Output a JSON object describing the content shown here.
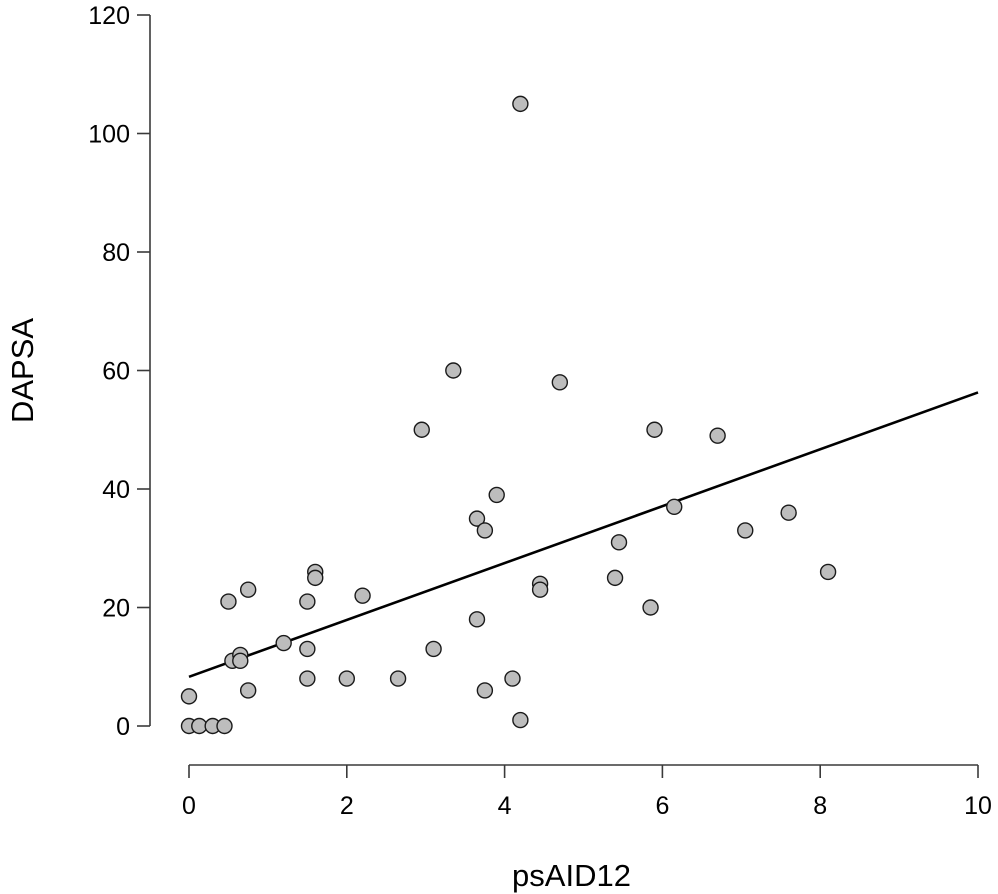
{
  "chart_data": {
    "type": "scatter",
    "title": "",
    "xlabel": "psAID12",
    "ylabel": "DAPSA",
    "xlim": [
      0,
      10
    ],
    "ylim": [
      0,
      120
    ],
    "xticks": [
      0,
      2,
      4,
      6,
      8,
      10
    ],
    "yticks": [
      0,
      20,
      40,
      60,
      80,
      100,
      120
    ],
    "x_tick_labels": [
      "0",
      "2",
      "4",
      "6",
      "8",
      "10"
    ],
    "y_tick_labels": [
      "0",
      "20",
      "40",
      "60",
      "80",
      "100",
      "120"
    ],
    "grid": false,
    "legend": "none",
    "point_color": "#bdbdbd",
    "point_edge_color": "#1a1a1a",
    "line_color": "#000000",
    "points": [
      {
        "x": 0.0,
        "y": 5
      },
      {
        "x": 0.0,
        "y": 0
      },
      {
        "x": 0.13,
        "y": 0
      },
      {
        "x": 0.3,
        "y": 0
      },
      {
        "x": 0.45,
        "y": 0
      },
      {
        "x": 0.5,
        "y": 21
      },
      {
        "x": 0.55,
        "y": 11
      },
      {
        "x": 0.65,
        "y": 12
      },
      {
        "x": 0.65,
        "y": 11
      },
      {
        "x": 0.75,
        "y": 23
      },
      {
        "x": 0.75,
        "y": 6
      },
      {
        "x": 1.2,
        "y": 14
      },
      {
        "x": 1.5,
        "y": 21
      },
      {
        "x": 1.5,
        "y": 13
      },
      {
        "x": 1.5,
        "y": 8
      },
      {
        "x": 1.6,
        "y": 26
      },
      {
        "x": 1.6,
        "y": 25
      },
      {
        "x": 2.0,
        "y": 8
      },
      {
        "x": 2.2,
        "y": 22
      },
      {
        "x": 2.65,
        "y": 8
      },
      {
        "x": 2.95,
        "y": 50
      },
      {
        "x": 3.1,
        "y": 13
      },
      {
        "x": 3.35,
        "y": 60
      },
      {
        "x": 3.65,
        "y": 35
      },
      {
        "x": 3.65,
        "y": 18
      },
      {
        "x": 3.75,
        "y": 33
      },
      {
        "x": 3.75,
        "y": 6
      },
      {
        "x": 3.9,
        "y": 39
      },
      {
        "x": 4.1,
        "y": 8
      },
      {
        "x": 4.2,
        "y": 105
      },
      {
        "x": 4.2,
        "y": 1
      },
      {
        "x": 4.45,
        "y": 24
      },
      {
        "x": 4.45,
        "y": 23
      },
      {
        "x": 4.7,
        "y": 58
      },
      {
        "x": 5.4,
        "y": 25
      },
      {
        "x": 5.45,
        "y": 31
      },
      {
        "x": 5.85,
        "y": 20
      },
      {
        "x": 5.9,
        "y": 50
      },
      {
        "x": 6.15,
        "y": 37
      },
      {
        "x": 6.7,
        "y": 49
      },
      {
        "x": 7.05,
        "y": 33
      },
      {
        "x": 7.6,
        "y": 36
      },
      {
        "x": 8.1,
        "y": 26
      }
    ],
    "regression_line": {
      "x": [
        0,
        10
      ],
      "y": [
        8.3,
        56.3
      ]
    }
  }
}
